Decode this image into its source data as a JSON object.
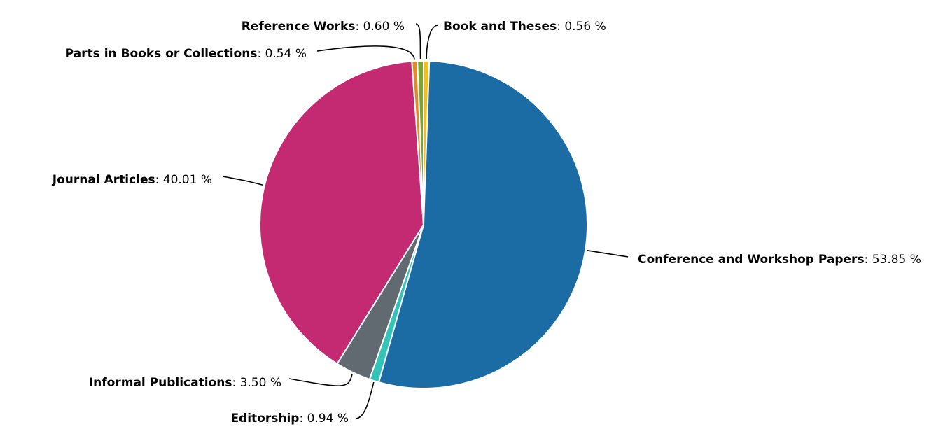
{
  "chart_data": {
    "type": "pie",
    "title": "",
    "unit": "%",
    "slices": [
      {
        "label": "Book and Theses",
        "value": 0.56,
        "display": "0.56 %",
        "color": "#f0c01c"
      },
      {
        "label": "Conference and Workshop Papers",
        "value": 53.85,
        "display": "53.85 %",
        "color": "#1b6ca4"
      },
      {
        "label": "Editorship",
        "value": 0.94,
        "display": "0.94 %",
        "color": "#33c3b8"
      },
      {
        "label": "Informal Publications",
        "value": 3.5,
        "display": "3.50 %",
        "color": "#606a70"
      },
      {
        "label": "Journal Articles",
        "value": 40.01,
        "display": "40.01 %",
        "color": "#c42a72"
      },
      {
        "label": "Parts in Books or Collections",
        "value": 0.54,
        "display": "0.54 %",
        "color": "#e08a2a"
      },
      {
        "label": "Reference Works",
        "value": 0.6,
        "display": "0.60 %",
        "color": "#7da62e"
      }
    ]
  }
}
